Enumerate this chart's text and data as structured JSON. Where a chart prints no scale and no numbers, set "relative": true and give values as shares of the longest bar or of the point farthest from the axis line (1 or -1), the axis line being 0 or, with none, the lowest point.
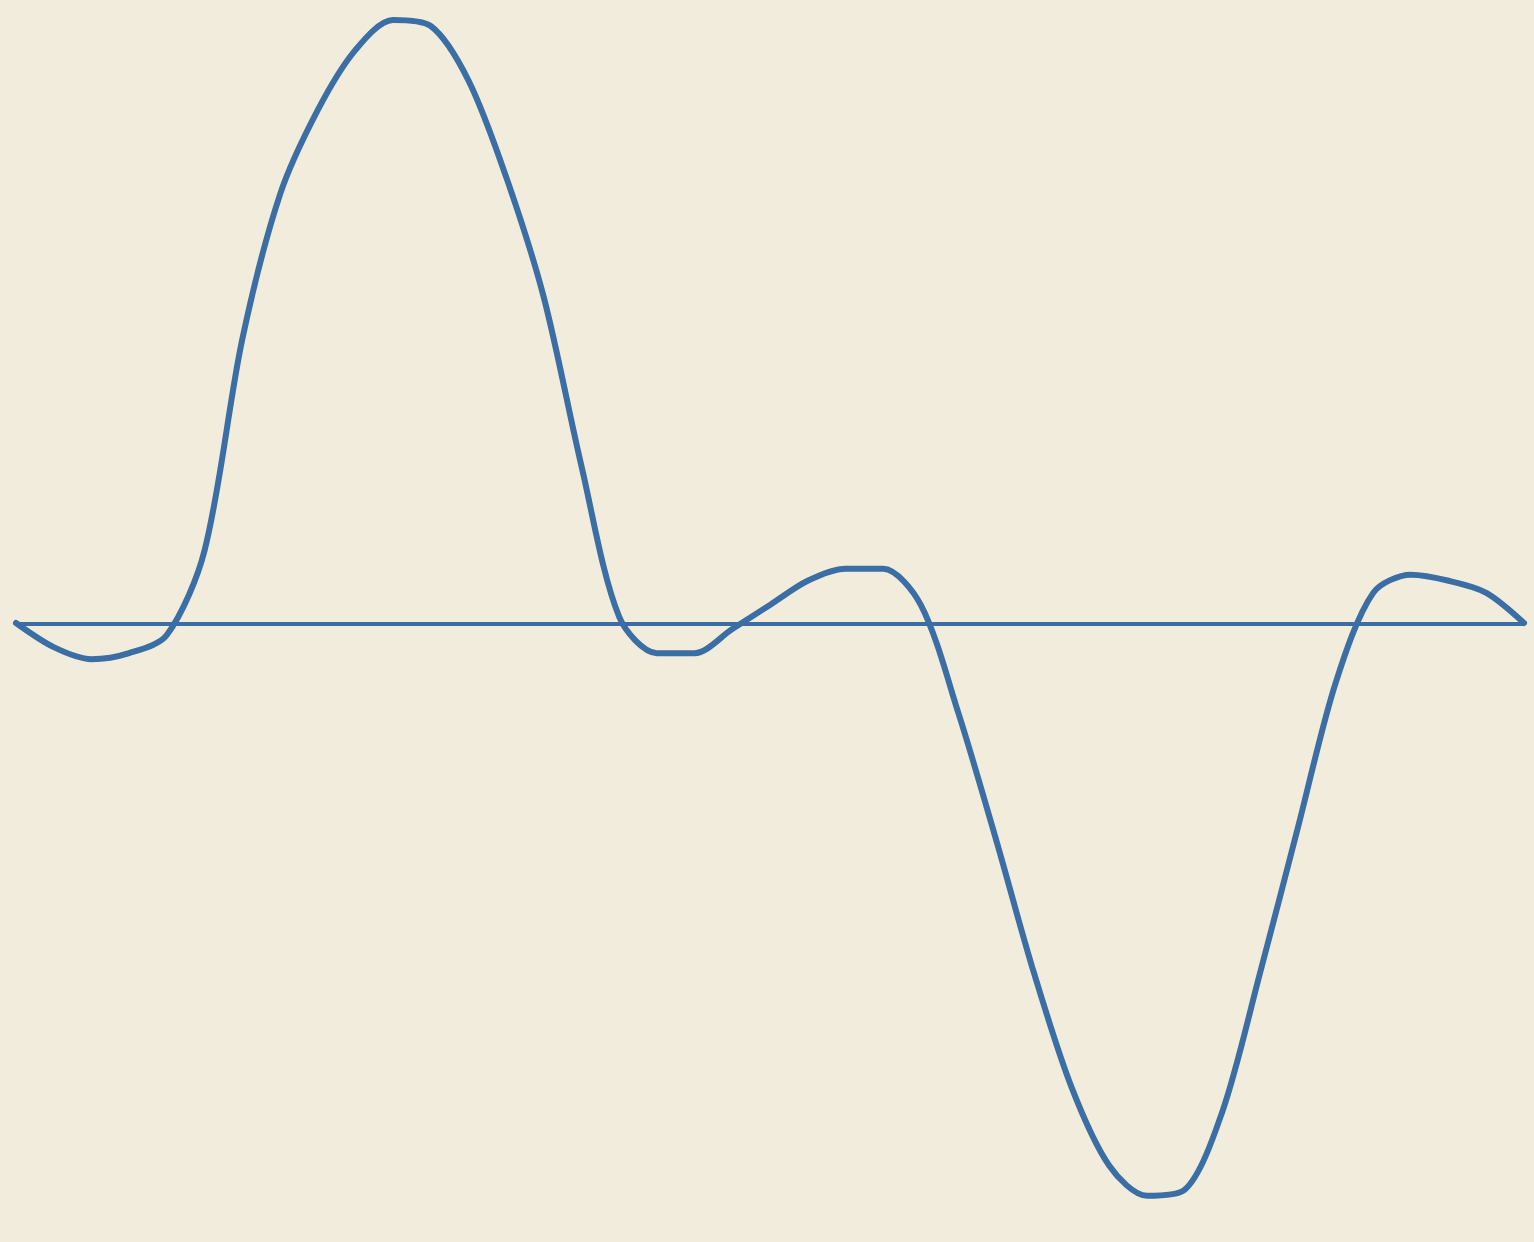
{
  "chart_data": {
    "type": "line",
    "relative": true,
    "categories": [
      null,
      null,
      null,
      null,
      null,
      null,
      null,
      null,
      null,
      null,
      null,
      null,
      null,
      null,
      null,
      null,
      null,
      null,
      null,
      null,
      null,
      null,
      null,
      null,
      null,
      null,
      null,
      null,
      null,
      null,
      null,
      null,
      null,
      null,
      null,
      null,
      null,
      null,
      null,
      null,
      null
    ],
    "series": [
      {
        "color": "#3a6ea5",
        "values": [
          0,
          -0.04,
          -0.06,
          -0.05,
          -0.02,
          0.12,
          0.47,
          0.71,
          0.85,
          0.95,
          1,
          0.99,
          0.9,
          0.74,
          0.54,
          0.26,
          0.01,
          -0.05,
          -0.05,
          -0.01,
          0.03,
          0.07,
          0.09,
          0.09,
          0.03,
          -0.15,
          -0.36,
          -0.58,
          -0.77,
          -0.9,
          -0.95,
          -0.94,
          -0.81,
          -0.58,
          -0.34,
          -0.1,
          0.05,
          0.08,
          0.07,
          0.05,
          0
        ]
      }
    ],
    "ref_lines": [
      {
        "axis": "y",
        "value": 0,
        "color": "#3a6ea5",
        "line_style": "solid"
      }
    ],
    "grid": false,
    "marker": "none",
    "line_style": "solid"
  }
}
